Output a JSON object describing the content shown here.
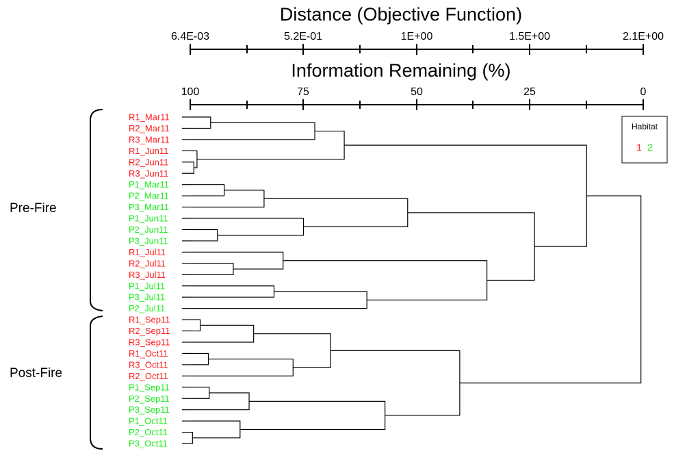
{
  "chart_data": {
    "type": "dendrogram",
    "top_axis": {
      "title": "Distance (Objective Function)",
      "ticks": [
        "6.4E-03",
        "5.2E-01",
        "1E+00",
        "1.5E+00",
        "2.1E+00"
      ]
    },
    "bottom_axis": {
      "title": "Information Remaining (%)",
      "ticks": [
        "100",
        "75",
        "50",
        "25",
        "0"
      ],
      "range": [
        100,
        0
      ]
    },
    "leaves": [
      {
        "label": "R1_Mar11",
        "habitat": "1"
      },
      {
        "label": "R2_Mar11",
        "habitat": "1"
      },
      {
        "label": "R3_Mar11",
        "habitat": "1"
      },
      {
        "label": "R1_Jun11",
        "habitat": "1"
      },
      {
        "label": "R2_Jun11",
        "habitat": "1"
      },
      {
        "label": "R3_Jun11",
        "habitat": "1"
      },
      {
        "label": "P1_Mar11",
        "habitat": "2"
      },
      {
        "label": "P2_Mar11",
        "habitat": "2"
      },
      {
        "label": "P3_Mar11",
        "habitat": "2"
      },
      {
        "label": "P1_Jun11",
        "habitat": "2"
      },
      {
        "label": "P2_Jun11",
        "habitat": "2"
      },
      {
        "label": "P3_Jun11",
        "habitat": "2"
      },
      {
        "label": "R1_Jul11",
        "habitat": "1"
      },
      {
        "label": "R2_Jul11",
        "habitat": "1"
      },
      {
        "label": "R3_Jul11",
        "habitat": "1"
      },
      {
        "label": "P1_Jul11",
        "habitat": "2"
      },
      {
        "label": "P3_Jul11",
        "habitat": "2"
      },
      {
        "label": "P2_Jul11",
        "habitat": "2"
      },
      {
        "label": "R1_Sep11",
        "habitat": "1"
      },
      {
        "label": "R2_Sep11",
        "habitat": "1"
      },
      {
        "label": "R3_Sep11",
        "habitat": "1"
      },
      {
        "label": "R1_Oct11",
        "habitat": "1"
      },
      {
        "label": "R3_Oct11",
        "habitat": "1"
      },
      {
        "label": "R2_Oct11",
        "habitat": "1"
      },
      {
        "label": "P1_Sep11",
        "habitat": "2"
      },
      {
        "label": "P2_Sep11",
        "habitat": "2"
      },
      {
        "label": "P3_Sep11",
        "habitat": "2"
      },
      {
        "label": "P1_Oct11",
        "habitat": "2"
      },
      {
        "label": "P2_Oct11",
        "habitat": "2"
      },
      {
        "label": "P3_Oct11",
        "habitat": "2"
      }
    ],
    "merges": [
      {
        "a": "L0",
        "b": "L1",
        "info_remaining": 95.5
      },
      {
        "a": "M0",
        "b": "L2",
        "info_remaining": 72.5
      },
      {
        "a": "L4",
        "b": "L5",
        "info_remaining": 99.2
      },
      {
        "a": "L3",
        "b": "M2",
        "info_remaining": 98.5
      },
      {
        "a": "M1",
        "b": "M3",
        "info_remaining": 66.0
      },
      {
        "a": "L6",
        "b": "L7",
        "info_remaining": 92.5
      },
      {
        "a": "M5",
        "b": "L8",
        "info_remaining": 83.7
      },
      {
        "a": "L10",
        "b": "L11",
        "info_remaining": 94.0
      },
      {
        "a": "L9",
        "b": "M7",
        "info_remaining": 75.0
      },
      {
        "a": "M6",
        "b": "M8",
        "info_remaining": 52.0
      },
      {
        "a": "L13",
        "b": "L14",
        "info_remaining": 90.5
      },
      {
        "a": "L12",
        "b": "M10",
        "info_remaining": 79.5
      },
      {
        "a": "L15",
        "b": "L16",
        "info_remaining": 81.5
      },
      {
        "a": "M12",
        "b": "L17",
        "info_remaining": 61.0
      },
      {
        "a": "M11",
        "b": "M13",
        "info_remaining": 34.5
      },
      {
        "a": "M9",
        "b": "M14",
        "info_remaining": 24.0
      },
      {
        "a": "M4",
        "b": "M15",
        "info_remaining": 12.5
      },
      {
        "a": "L18",
        "b": "L19",
        "info_remaining": 97.8
      },
      {
        "a": "M17",
        "b": "L20",
        "info_remaining": 86.0
      },
      {
        "a": "L21",
        "b": "L22",
        "info_remaining": 96.0
      },
      {
        "a": "M19",
        "b": "L23",
        "info_remaining": 77.3
      },
      {
        "a": "M18",
        "b": "M20",
        "info_remaining": 69.0
      },
      {
        "a": "L24",
        "b": "L25",
        "info_remaining": 95.8
      },
      {
        "a": "M22",
        "b": "L26",
        "info_remaining": 87.0
      },
      {
        "a": "L28",
        "b": "L29",
        "info_remaining": 99.5
      },
      {
        "a": "L27",
        "b": "M24",
        "info_remaining": 89.0
      },
      {
        "a": "M23",
        "b": "M25",
        "info_remaining": 57.0
      },
      {
        "a": "M21",
        "b": "M26",
        "info_remaining": 40.5
      },
      {
        "a": "M27",
        "b": "L30_dummy",
        "info_remaining": 40.5
      }
    ],
    "groups": [
      {
        "label": "Pre-Fire",
        "from": 0,
        "to": 17
      },
      {
        "label": "Post-Fire",
        "from": 18,
        "to": 29
      }
    ],
    "legend": {
      "title": "Habitat",
      "items": [
        {
          "label": "1",
          "color": "#ff1a1a"
        },
        {
          "label": "2",
          "color": "#1aee1a"
        }
      ]
    },
    "colors": {
      "1": "#ff1a1a",
      "2": "#1aee1a"
    }
  }
}
